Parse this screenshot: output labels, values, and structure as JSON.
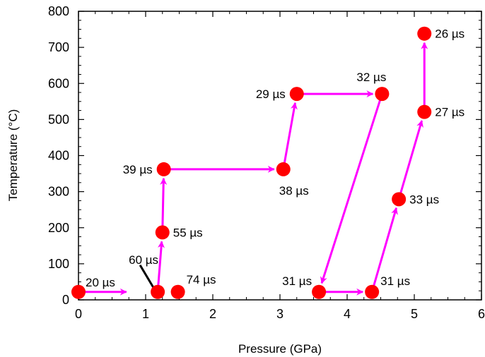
{
  "chart_data": {
    "type": "scatter",
    "xlabel": "Pressure (GPa)",
    "ylabel": "Temperature (°C)",
    "xlim": [
      0,
      6
    ],
    "ylim": [
      0,
      800
    ],
    "xticks": [
      "0",
      "1",
      "2",
      "3",
      "4",
      "5",
      "6"
    ],
    "yticks": [
      "0",
      "100",
      "200",
      "300",
      "400",
      "500",
      "600",
      "700",
      "800"
    ],
    "grid": false,
    "marker_color": "#ff0000",
    "arrow_color": "#ff00ff",
    "leader_color": "#000000",
    "points": [
      {
        "x": 0.0,
        "y": 22,
        "label": "20 µs"
      },
      {
        "x": 1.18,
        "y": 22,
        "label": "60 µs"
      },
      {
        "x": 1.48,
        "y": 22,
        "label": "74 µs"
      },
      {
        "x": 1.25,
        "y": 187,
        "label": "55 µs"
      },
      {
        "x": 1.27,
        "y": 362,
        "label": "39 µs"
      },
      {
        "x": 3.05,
        "y": 362,
        "label": "38 µs"
      },
      {
        "x": 3.25,
        "y": 571,
        "label": "29 µs"
      },
      {
        "x": 4.52,
        "y": 571,
        "label": "32 µs"
      },
      {
        "x": 3.58,
        "y": 22,
        "label": "31 µs"
      },
      {
        "x": 4.37,
        "y": 22,
        "label": "31 µs"
      },
      {
        "x": 4.77,
        "y": 279,
        "label": "33 µs"
      },
      {
        "x": 5.15,
        "y": 521,
        "label": "27 µs"
      },
      {
        "x": 5.15,
        "y": 738,
        "label": "26 µs"
      }
    ],
    "arrows": [
      {
        "from": [
          0.0,
          22
        ],
        "to": [
          0.85,
          22
        ]
      },
      {
        "from": [
          1.18,
          22
        ],
        "to": [
          1.25,
          187
        ]
      },
      {
        "from": [
          1.25,
          187
        ],
        "to": [
          1.27,
          362
        ]
      },
      {
        "from": [
          1.27,
          362
        ],
        "to": [
          3.05,
          362
        ]
      },
      {
        "from": [
          3.05,
          362
        ],
        "to": [
          3.25,
          571
        ]
      },
      {
        "from": [
          3.25,
          571
        ],
        "to": [
          4.52,
          571
        ]
      },
      {
        "from": [
          4.52,
          571
        ],
        "to": [
          3.58,
          22
        ]
      },
      {
        "from": [
          3.58,
          22
        ],
        "to": [
          4.37,
          22
        ]
      },
      {
        "from": [
          4.37,
          22
        ],
        "to": [
          4.77,
          279
        ]
      },
      {
        "from": [
          4.77,
          279
        ],
        "to": [
          5.15,
          521
        ]
      },
      {
        "from": [
          5.15,
          521
        ],
        "to": [
          5.15,
          738
        ]
      }
    ]
  }
}
